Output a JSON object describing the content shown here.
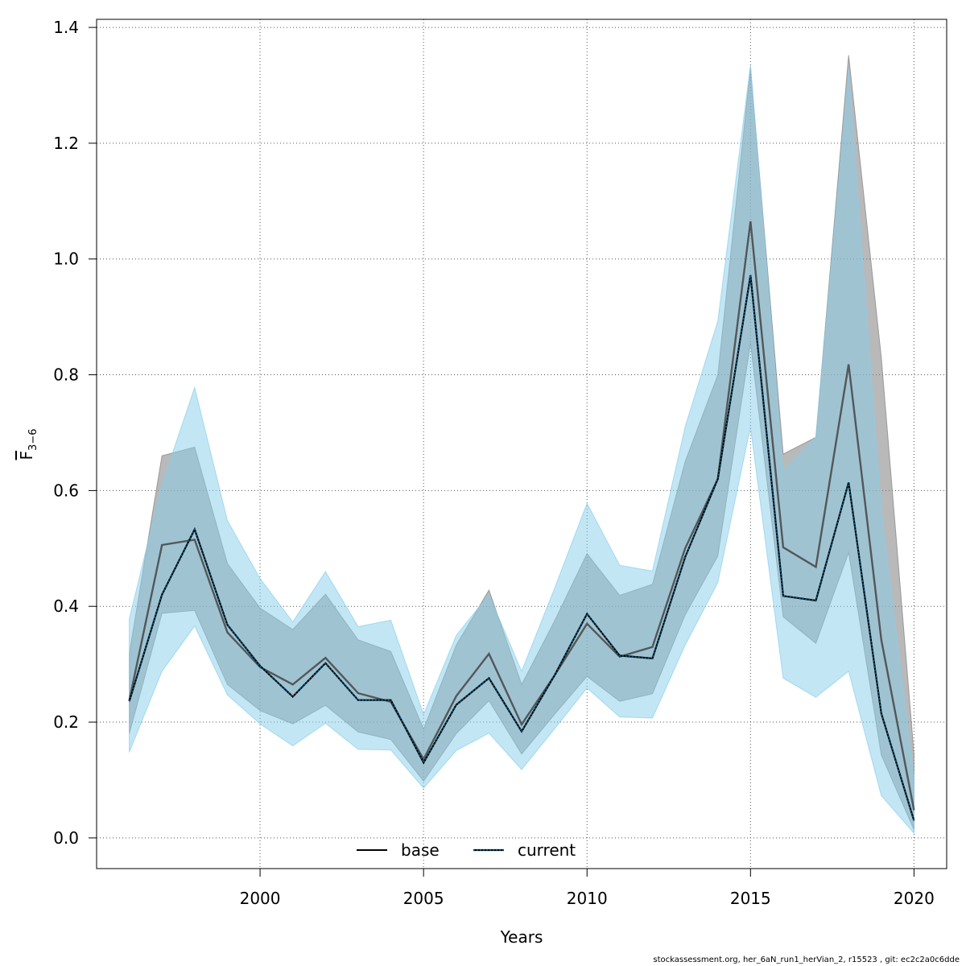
{
  "chart_data": {
    "type": "line",
    "ylabel": "F̅3−6",
    "xlabel": "Years",
    "xlim": [
      1995,
      2021
    ],
    "ylim": [
      -0.053,
      1.414
    ],
    "x_ticks": [
      2000,
      2005,
      2010,
      2015,
      2020
    ],
    "y_ticks": [
      0.0,
      0.2,
      0.4,
      0.6,
      0.8,
      1.0,
      1.2,
      1.4
    ],
    "y_tick_labels": [
      "0.0",
      "0.2",
      "0.4",
      "0.6",
      "0.8",
      "1.0",
      "1.2",
      "1.4"
    ],
    "grid": true,
    "legend_position": "bottom-center",
    "x": [
      1996,
      1997,
      1998,
      1999,
      2000,
      2001,
      2002,
      2003,
      2004,
      2005,
      2006,
      2007,
      2008,
      2009,
      2010,
      2011,
      2012,
      2013,
      2014,
      2015,
      2016,
      2017,
      2018,
      2019,
      2020
    ],
    "series": [
      {
        "name": "base",
        "line_style": "solid",
        "color": "#000000",
        "band_color": "#808080",
        "values": [
          0.237,
          0.506,
          0.515,
          0.355,
          0.295,
          0.265,
          0.311,
          0.25,
          0.235,
          0.136,
          0.245,
          0.318,
          0.196,
          0.28,
          0.37,
          0.313,
          0.33,
          0.5,
          0.62,
          1.065,
          0.502,
          0.468,
          0.818,
          0.342,
          0.048
        ],
        "lower": [
          0.18,
          0.388,
          0.393,
          0.265,
          0.22,
          0.197,
          0.229,
          0.183,
          0.17,
          0.098,
          0.18,
          0.237,
          0.145,
          0.213,
          0.279,
          0.236,
          0.249,
          0.385,
          0.487,
          0.855,
          0.382,
          0.336,
          0.493,
          0.143,
          0.014
        ],
        "upper": [
          0.318,
          0.66,
          0.675,
          0.474,
          0.397,
          0.36,
          0.421,
          0.342,
          0.322,
          0.188,
          0.333,
          0.428,
          0.265,
          0.374,
          0.491,
          0.419,
          0.438,
          0.65,
          0.8,
          1.33,
          0.663,
          0.692,
          1.352,
          0.83,
          0.145
        ]
      },
      {
        "name": "current",
        "line_style": "dotted",
        "color": "#005f8a",
        "band_color": "#87ceeb",
        "values": [
          0.236,
          0.42,
          0.533,
          0.368,
          0.297,
          0.244,
          0.302,
          0.238,
          0.238,
          0.13,
          0.23,
          0.276,
          0.184,
          0.28,
          0.387,
          0.315,
          0.31,
          0.485,
          0.62,
          0.972,
          0.418,
          0.41,
          0.614,
          0.215,
          0.03
        ],
        "lower": [
          0.148,
          0.288,
          0.366,
          0.247,
          0.197,
          0.159,
          0.198,
          0.153,
          0.152,
          0.086,
          0.151,
          0.181,
          0.118,
          0.188,
          0.259,
          0.209,
          0.207,
          0.333,
          0.441,
          0.71,
          0.276,
          0.243,
          0.288,
          0.073,
          0.008
        ],
        "upper": [
          0.378,
          0.611,
          0.778,
          0.548,
          0.448,
          0.373,
          0.46,
          0.365,
          0.376,
          0.213,
          0.35,
          0.42,
          0.288,
          0.43,
          0.578,
          0.471,
          0.461,
          0.71,
          0.893,
          1.335,
          0.634,
          0.692,
          1.326,
          0.566,
          0.104
        ]
      }
    ]
  },
  "footer_text": "stockassessment.org, her_6aN_run1_herVian_2, r15523 , git: ec2c2a0c6dde"
}
